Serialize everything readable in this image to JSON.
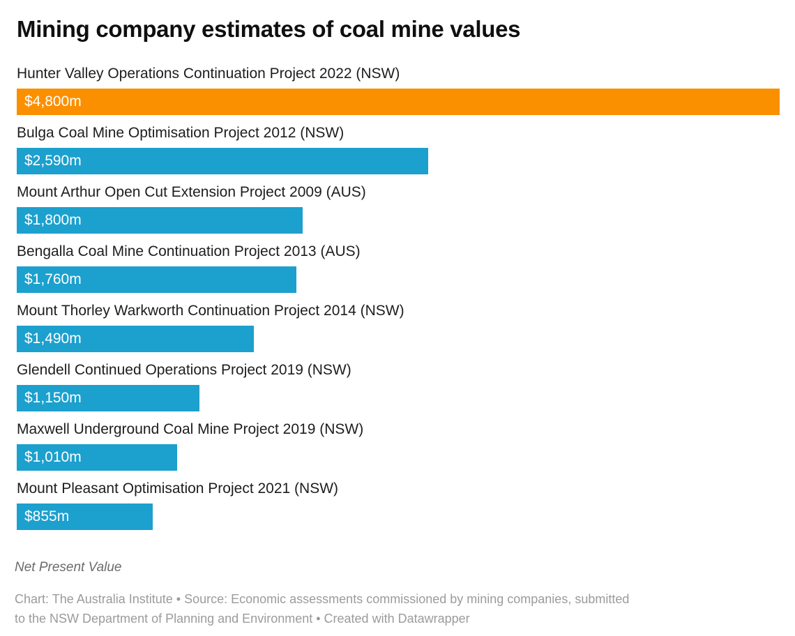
{
  "page": {
    "title": "Mining company estimates of coal mine values"
  },
  "colors": {
    "highlight_bar": "#FA9000",
    "default_bar": "#1CA0CE",
    "bar_value_text": "#FFFFFF",
    "title_text": "#0F0F0F",
    "category_label_text": "#1D1D1D",
    "notes_text": "#6B6B6B",
    "attribution_text": "#9B9B9B",
    "background": "#FFFFFF"
  },
  "chart_data": {
    "type": "bar",
    "orientation": "horizontal",
    "title": "Mining company estimates of coal mine values",
    "categories": [
      "Hunter Valley Operations Continuation Project 2022 (NSW)",
      "Bulga Coal Mine Optimisation Project 2012 (NSW)",
      "Mount Arthur Open Cut Extension Project 2009 (AUS)",
      "Bengalla Coal Mine Continuation Project 2013 (AUS)",
      "Mount Thorley Warkworth Continuation Project 2014 (NSW)",
      "Glendell Continued Operations Project 2019 (NSW)",
      "Maxwell Underground Coal Mine Project 2019 (NSW)",
      "Mount Pleasant Optimisation Project 2021 (NSW)"
    ],
    "values": [
      4800,
      2590,
      1800,
      1760,
      1490,
      1150,
      1010,
      855
    ],
    "value_labels": [
      "$4,800m",
      "$2,590m",
      "$1,800m",
      "$1,760m",
      "$1,490m",
      "$1,150m",
      "$1,010m",
      "$855m"
    ],
    "bar_colors": [
      "#FA9000",
      "#1CA0CE",
      "#1CA0CE",
      "#1CA0CE",
      "#1CA0CE",
      "#1CA0CE",
      "#1CA0CE",
      "#1CA0CE"
    ],
    "xlim": [
      0,
      4800
    ],
    "grid": false,
    "legend": false,
    "value_label_position": "inside-left",
    "ylabel": "",
    "xlabel": "Net Present Value ($m)"
  },
  "footer": {
    "notes": "Net Present Value",
    "attribution_lines": [
      "Chart: The Australia Institute • Source: Economic assessments commissioned by mining companies, submitted",
      "to the NSW Department of Planning and Environment • Created with Datawrapper"
    ]
  }
}
